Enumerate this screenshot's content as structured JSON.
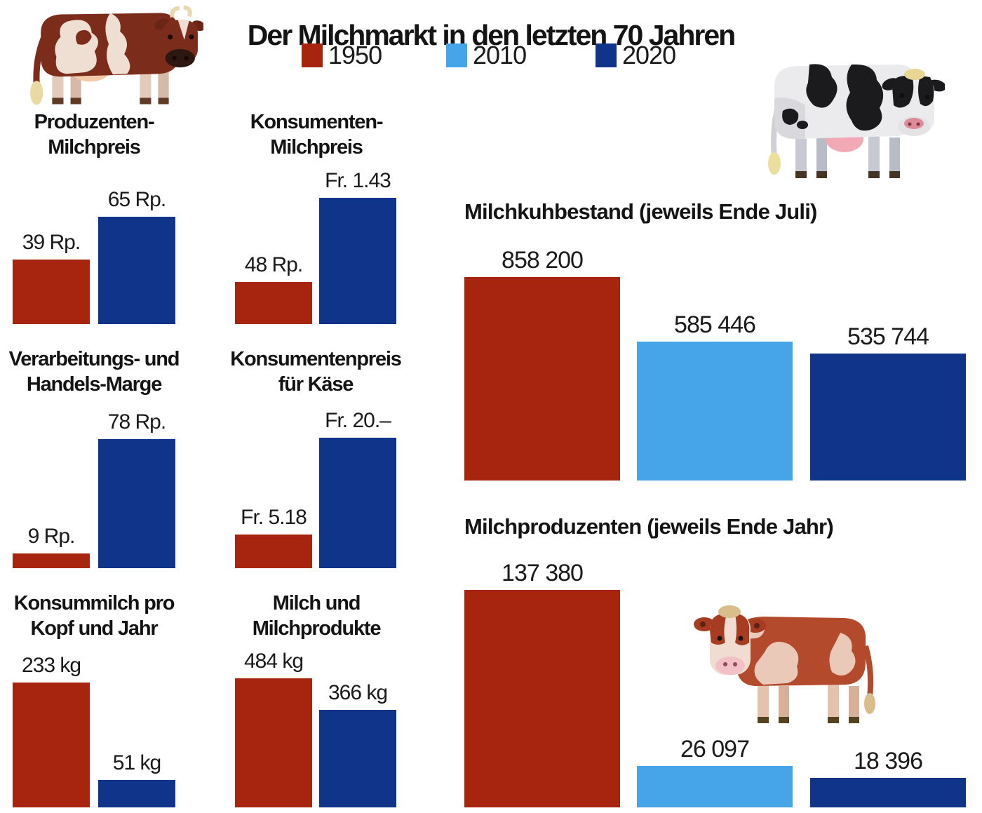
{
  "title": "Der Milchmarkt in den letzten 70 Jahren",
  "legend": {
    "items": [
      {
        "label": "1950",
        "color": "#a7250f"
      },
      {
        "label": "2010",
        "color": "#45a5e8"
      },
      {
        "label": "2020",
        "color": "#103489"
      }
    ]
  },
  "colors": {
    "bar_1950": "#a7250f",
    "bar_2010": "#45a5e8",
    "bar_2020": "#103489",
    "text": "#141414",
    "background": "#ffffff"
  },
  "illustrations": {
    "top_left": "red-pied-cow",
    "top_right": "holstein-cow",
    "bottom_right": "simmental-cow"
  },
  "chart_data": [
    {
      "id": "produzenten-milchpreis",
      "type": "bar",
      "title_lines": [
        "Produzenten-",
        "Milchpreis"
      ],
      "categories": [
        "1950",
        "2020"
      ],
      "values": [
        39,
        65
      ],
      "value_labels": [
        "39 Rp.",
        "65 Rp."
      ],
      "unit": "Rappen"
    },
    {
      "id": "konsumenten-milchpreis",
      "type": "bar",
      "title_lines": [
        "Konsumenten-",
        "Milchpreis"
      ],
      "categories": [
        "1950",
        "2020"
      ],
      "values": [
        48,
        143
      ],
      "value_labels": [
        "48 Rp.",
        "Fr. 1.43"
      ],
      "unit": "Rappen"
    },
    {
      "id": "verarbeitungs-und-handels-marge",
      "type": "bar",
      "title_lines": [
        "Verarbeitungs- und",
        "Handels-Marge"
      ],
      "categories": [
        "1950",
        "2020"
      ],
      "values": [
        9,
        78
      ],
      "value_labels": [
        "9 Rp.",
        "78 Rp."
      ],
      "unit": "Rappen"
    },
    {
      "id": "konsumentenpreis-fuer-kaese",
      "type": "bar",
      "title_lines": [
        "Konsumentenpreis",
        "für Käse"
      ],
      "categories": [
        "1950",
        "2020"
      ],
      "values": [
        5.18,
        20
      ],
      "value_labels": [
        "Fr. 5.18",
        "Fr. 20.–"
      ],
      "unit": "Franken"
    },
    {
      "id": "konsummilch-pro-kopf-und-jahr",
      "type": "bar",
      "title_lines": [
        "Konsummilch pro",
        "Kopf und Jahr"
      ],
      "categories": [
        "1950",
        "2020"
      ],
      "values": [
        233,
        51
      ],
      "value_labels": [
        "233 kg",
        "51 kg"
      ],
      "unit": "kg"
    },
    {
      "id": "milch-und-milchprodukte",
      "type": "bar",
      "title_lines": [
        "Milch und",
        "Milchprodukte"
      ],
      "categories": [
        "1950",
        "2020"
      ],
      "values": [
        484,
        366
      ],
      "value_labels": [
        "484 kg",
        "366 kg"
      ],
      "unit": "kg"
    },
    {
      "id": "milchkuhbestand",
      "type": "bar",
      "title": "Milchkuhbestand (jeweils Ende Juli)",
      "categories": [
        "1950",
        "2010",
        "2020"
      ],
      "values": [
        858200,
        585446,
        535744
      ],
      "value_labels": [
        "858 200",
        "585 446",
        "535 744"
      ],
      "unit": "Kühe"
    },
    {
      "id": "milchproduzenten",
      "type": "bar",
      "title": "Milchproduzenten (jeweils Ende Jahr)",
      "categories": [
        "1950",
        "2010",
        "2020"
      ],
      "values": [
        137380,
        26097,
        18396
      ],
      "value_labels": [
        "137 380",
        "26 097",
        "18 396"
      ],
      "unit": "Betriebe"
    }
  ]
}
